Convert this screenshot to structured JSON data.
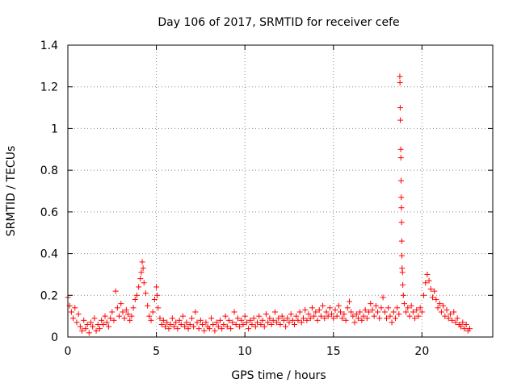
{
  "chart_data": {
    "type": "scatter",
    "title": "Day 106 of 2017, SRMTID for receiver cefe",
    "xlabel": "GPS time / hours",
    "ylabel": "SRMTID / TECUs",
    "xlim": [
      0,
      24
    ],
    "ylim": [
      0,
      1.4
    ],
    "grid": true,
    "marker": "+",
    "series_color": "#ff0000",
    "x_ticks": [
      {
        "value": 0,
        "label": "0"
      },
      {
        "value": 5,
        "label": "5"
      },
      {
        "value": 10,
        "label": "10"
      },
      {
        "value": 15,
        "label": "15"
      },
      {
        "value": 20,
        "label": "20"
      }
    ],
    "y_ticks": [
      {
        "value": 0,
        "label": "0"
      },
      {
        "value": 0.2,
        "label": "0.2"
      },
      {
        "value": 0.4,
        "label": "0.4"
      },
      {
        "value": 0.6,
        "label": "0.6"
      },
      {
        "value": 0.8,
        "label": "0.8"
      },
      {
        "value": 1.0,
        "label": "1"
      },
      {
        "value": 1.2,
        "label": "1.2"
      },
      {
        "value": 1.4,
        "label": "1.4"
      }
    ],
    "points": [
      [
        0.0,
        0.19
      ],
      [
        0.1,
        0.15
      ],
      [
        0.2,
        0.12
      ],
      [
        0.3,
        0.09
      ],
      [
        0.4,
        0.14
      ],
      [
        0.5,
        0.07
      ],
      [
        0.6,
        0.11
      ],
      [
        0.7,
        0.05
      ],
      [
        0.8,
        0.03
      ],
      [
        0.9,
        0.08
      ],
      [
        1.0,
        0.04
      ],
      [
        1.1,
        0.06
      ],
      [
        1.2,
        0.02
      ],
      [
        1.3,
        0.07
      ],
      [
        1.4,
        0.05
      ],
      [
        1.5,
        0.09
      ],
      [
        1.6,
        0.03
      ],
      [
        1.7,
        0.06
      ],
      [
        1.8,
        0.04
      ],
      [
        1.9,
        0.08
      ],
      [
        2.0,
        0.06
      ],
      [
        2.1,
        0.1
      ],
      [
        2.2,
        0.07
      ],
      [
        2.3,
        0.05
      ],
      [
        2.4,
        0.09
      ],
      [
        2.5,
        0.12
      ],
      [
        2.6,
        0.08
      ],
      [
        2.7,
        0.22
      ],
      [
        2.8,
        0.14
      ],
      [
        2.9,
        0.1
      ],
      [
        3.0,
        0.16
      ],
      [
        3.1,
        0.12
      ],
      [
        3.2,
        0.09
      ],
      [
        3.3,
        0.13
      ],
      [
        3.4,
        0.11
      ],
      [
        3.5,
        0.08
      ],
      [
        3.6,
        0.1
      ],
      [
        3.7,
        0.14
      ],
      [
        3.8,
        0.18
      ],
      [
        3.9,
        0.2
      ],
      [
        4.0,
        0.24
      ],
      [
        4.1,
        0.28
      ],
      [
        4.15,
        0.31
      ],
      [
        4.2,
        0.36
      ],
      [
        4.25,
        0.33
      ],
      [
        4.3,
        0.26
      ],
      [
        4.4,
        0.21
      ],
      [
        4.5,
        0.15
      ],
      [
        4.6,
        0.1
      ],
      [
        4.7,
        0.08
      ],
      [
        4.8,
        0.12
      ],
      [
        4.9,
        0.18
      ],
      [
        5.0,
        0.24
      ],
      [
        5.05,
        0.2
      ],
      [
        5.1,
        0.14
      ],
      [
        5.2,
        0.09
      ],
      [
        5.3,
        0.06
      ],
      [
        5.4,
        0.08
      ],
      [
        5.5,
        0.05
      ],
      [
        5.6,
        0.07
      ],
      [
        5.7,
        0.04
      ],
      [
        5.8,
        0.06
      ],
      [
        5.9,
        0.09
      ],
      [
        6.0,
        0.05
      ],
      [
        6.1,
        0.07
      ],
      [
        6.2,
        0.04
      ],
      [
        6.3,
        0.08
      ],
      [
        6.4,
        0.06
      ],
      [
        6.5,
        0.1
      ],
      [
        6.6,
        0.05
      ],
      [
        6.7,
        0.07
      ],
      [
        6.8,
        0.04
      ],
      [
        6.9,
        0.06
      ],
      [
        7.0,
        0.09
      ],
      [
        7.1,
        0.05
      ],
      [
        7.2,
        0.12
      ],
      [
        7.3,
        0.07
      ],
      [
        7.4,
        0.04
      ],
      [
        7.5,
        0.08
      ],
      [
        7.6,
        0.06
      ],
      [
        7.7,
        0.03
      ],
      [
        7.8,
        0.07
      ],
      [
        7.9,
        0.05
      ],
      [
        8.0,
        0.04
      ],
      [
        8.1,
        0.09
      ],
      [
        8.2,
        0.06
      ],
      [
        8.3,
        0.03
      ],
      [
        8.4,
        0.07
      ],
      [
        8.5,
        0.05
      ],
      [
        8.6,
        0.08
      ],
      [
        8.7,
        0.04
      ],
      [
        8.8,
        0.06
      ],
      [
        8.9,
        0.1
      ],
      [
        9.0,
        0.05
      ],
      [
        9.1,
        0.08
      ],
      [
        9.2,
        0.04
      ],
      [
        9.3,
        0.07
      ],
      [
        9.4,
        0.12
      ],
      [
        9.5,
        0.06
      ],
      [
        9.6,
        0.09
      ],
      [
        9.7,
        0.05
      ],
      [
        9.8,
        0.08
      ],
      [
        9.9,
        0.06
      ],
      [
        10.0,
        0.1
      ],
      [
        10.1,
        0.07
      ],
      [
        10.2,
        0.04
      ],
      [
        10.3,
        0.08
      ],
      [
        10.4,
        0.06
      ],
      [
        10.5,
        0.09
      ],
      [
        10.6,
        0.05
      ],
      [
        10.7,
        0.07
      ],
      [
        10.8,
        0.1
      ],
      [
        10.9,
        0.06
      ],
      [
        11.0,
        0.08
      ],
      [
        11.1,
        0.05
      ],
      [
        11.2,
        0.11
      ],
      [
        11.3,
        0.07
      ],
      [
        11.4,
        0.09
      ],
      [
        11.5,
        0.06
      ],
      [
        11.6,
        0.08
      ],
      [
        11.7,
        0.12
      ],
      [
        11.8,
        0.07
      ],
      [
        11.9,
        0.09
      ],
      [
        12.0,
        0.06
      ],
      [
        12.1,
        0.1
      ],
      [
        12.2,
        0.08
      ],
      [
        12.3,
        0.05
      ],
      [
        12.4,
        0.09
      ],
      [
        12.5,
        0.07
      ],
      [
        12.6,
        0.11
      ],
      [
        12.7,
        0.08
      ],
      [
        12.8,
        0.06
      ],
      [
        12.9,
        0.1
      ],
      [
        13.0,
        0.08
      ],
      [
        13.1,
        0.12
      ],
      [
        13.2,
        0.07
      ],
      [
        13.3,
        0.09
      ],
      [
        13.4,
        0.13
      ],
      [
        13.5,
        0.08
      ],
      [
        13.6,
        0.11
      ],
      [
        13.7,
        0.09
      ],
      [
        13.8,
        0.14
      ],
      [
        13.9,
        0.1
      ],
      [
        14.0,
        0.12
      ],
      [
        14.1,
        0.08
      ],
      [
        14.2,
        0.13
      ],
      [
        14.3,
        0.1
      ],
      [
        14.4,
        0.15
      ],
      [
        14.5,
        0.09
      ],
      [
        14.6,
        0.12
      ],
      [
        14.7,
        0.1
      ],
      [
        14.8,
        0.14
      ],
      [
        14.9,
        0.11
      ],
      [
        15.0,
        0.09
      ],
      [
        15.1,
        0.13
      ],
      [
        15.2,
        0.1
      ],
      [
        15.3,
        0.15
      ],
      [
        15.4,
        0.12
      ],
      [
        15.5,
        0.09
      ],
      [
        15.6,
        0.11
      ],
      [
        15.7,
        0.08
      ],
      [
        15.8,
        0.14
      ],
      [
        15.9,
        0.17
      ],
      [
        16.0,
        0.12
      ],
      [
        16.1,
        0.1
      ],
      [
        16.2,
        0.07
      ],
      [
        16.3,
        0.11
      ],
      [
        16.4,
        0.09
      ],
      [
        16.5,
        0.12
      ],
      [
        16.6,
        0.08
      ],
      [
        16.7,
        0.1
      ],
      [
        16.8,
        0.13
      ],
      [
        16.9,
        0.09
      ],
      [
        17.0,
        0.12
      ],
      [
        17.1,
        0.16
      ],
      [
        17.2,
        0.13
      ],
      [
        17.3,
        0.1
      ],
      [
        17.4,
        0.15
      ],
      [
        17.5,
        0.12
      ],
      [
        17.6,
        0.09
      ],
      [
        17.7,
        0.14
      ],
      [
        17.8,
        0.19
      ],
      [
        17.9,
        0.12
      ],
      [
        18.0,
        0.09
      ],
      [
        18.1,
        0.14
      ],
      [
        18.2,
        0.1
      ],
      [
        18.3,
        0.07
      ],
      [
        18.4,
        0.12
      ],
      [
        18.5,
        0.09
      ],
      [
        18.6,
        0.14
      ],
      [
        18.7,
        0.11
      ],
      [
        18.75,
        1.25
      ],
      [
        18.76,
        1.22
      ],
      [
        18.77,
        1.1
      ],
      [
        18.78,
        1.04
      ],
      [
        18.8,
        0.9
      ],
      [
        18.81,
        0.86
      ],
      [
        18.82,
        0.75
      ],
      [
        18.83,
        0.67
      ],
      [
        18.84,
        0.62
      ],
      [
        18.85,
        0.55
      ],
      [
        18.86,
        0.46
      ],
      [
        18.87,
        0.39
      ],
      [
        18.88,
        0.33
      ],
      [
        18.9,
        0.31
      ],
      [
        18.92,
        0.25
      ],
      [
        18.95,
        0.2
      ],
      [
        19.0,
        0.16
      ],
      [
        19.1,
        0.12
      ],
      [
        19.2,
        0.14
      ],
      [
        19.3,
        0.1
      ],
      [
        19.4,
        0.15
      ],
      [
        19.5,
        0.12
      ],
      [
        19.6,
        0.09
      ],
      [
        19.7,
        0.13
      ],
      [
        19.8,
        0.1
      ],
      [
        19.9,
        0.14
      ],
      [
        20.0,
        0.12
      ],
      [
        20.1,
        0.2
      ],
      [
        20.2,
        0.26
      ],
      [
        20.3,
        0.3
      ],
      [
        20.4,
        0.27
      ],
      [
        20.5,
        0.23
      ],
      [
        20.6,
        0.19
      ],
      [
        20.7,
        0.22
      ],
      [
        20.8,
        0.18
      ],
      [
        20.9,
        0.14
      ],
      [
        21.0,
        0.16
      ],
      [
        21.1,
        0.12
      ],
      [
        21.2,
        0.15
      ],
      [
        21.3,
        0.1
      ],
      [
        21.4,
        0.13
      ],
      [
        21.5,
        0.09
      ],
      [
        21.6,
        0.11
      ],
      [
        21.7,
        0.08
      ],
      [
        21.8,
        0.12
      ],
      [
        21.9,
        0.07
      ],
      [
        22.0,
        0.09
      ],
      [
        22.1,
        0.06
      ],
      [
        22.2,
        0.05
      ],
      [
        22.3,
        0.07
      ],
      [
        22.4,
        0.04
      ],
      [
        22.5,
        0.06
      ],
      [
        22.6,
        0.03
      ],
      [
        22.7,
        0.04
      ]
    ]
  }
}
